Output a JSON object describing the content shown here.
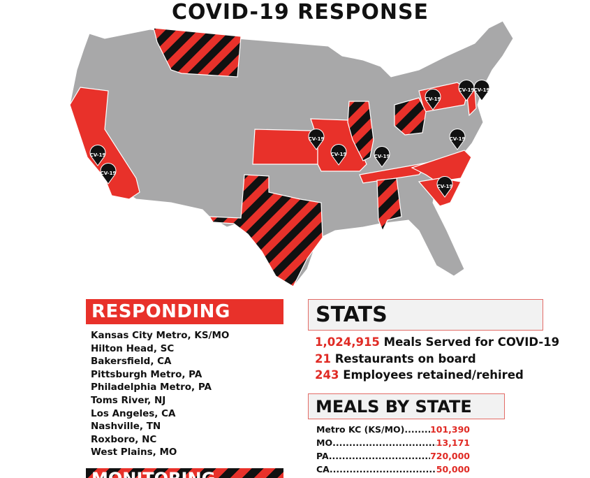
{
  "title": "COVID-19 RESPONSE",
  "colors": {
    "red": "#e8312a",
    "gray": "#a8a8a9",
    "black": "#111111"
  },
  "map": {
    "responding_states": [
      "CA",
      "KS",
      "MO",
      "TN",
      "NC",
      "SC",
      "PA",
      "NJ"
    ],
    "monitoring_states": [
      "MT",
      "TX",
      "IL",
      "OH",
      "AL"
    ],
    "pin_label": "CV-19"
  },
  "responding": {
    "heading": "RESPONDING",
    "items": [
      "Kansas City Metro, KS/MO",
      "Hilton Head, SC",
      "Bakersfield, CA",
      "Pittsburgh Metro, PA",
      "Philadelphia Metro, PA",
      "Toms River, NJ",
      "Los Angeles, CA",
      "Nashville, TN",
      "Roxboro, NC",
      "West Plains, MO"
    ]
  },
  "monitoring": {
    "heading": "MONITORING"
  },
  "stats": {
    "heading": "STATS",
    "items": [
      {
        "value": "1,024,915",
        "label": "Meals Served for COVID-19"
      },
      {
        "value": "21",
        "label": "Restaurants on board"
      },
      {
        "value": "243",
        "label": "Employees retained/rehired"
      }
    ]
  },
  "meals_by_state": {
    "heading": "MEALS BY STATE",
    "rows": [
      {
        "state": "Metro KC (KS/MO)",
        "meals": "101,390"
      },
      {
        "state": "MO",
        "meals": "13,171"
      },
      {
        "state": "PA",
        "meals": "720,000"
      },
      {
        "state": "CA",
        "meals": "50,000"
      }
    ]
  }
}
